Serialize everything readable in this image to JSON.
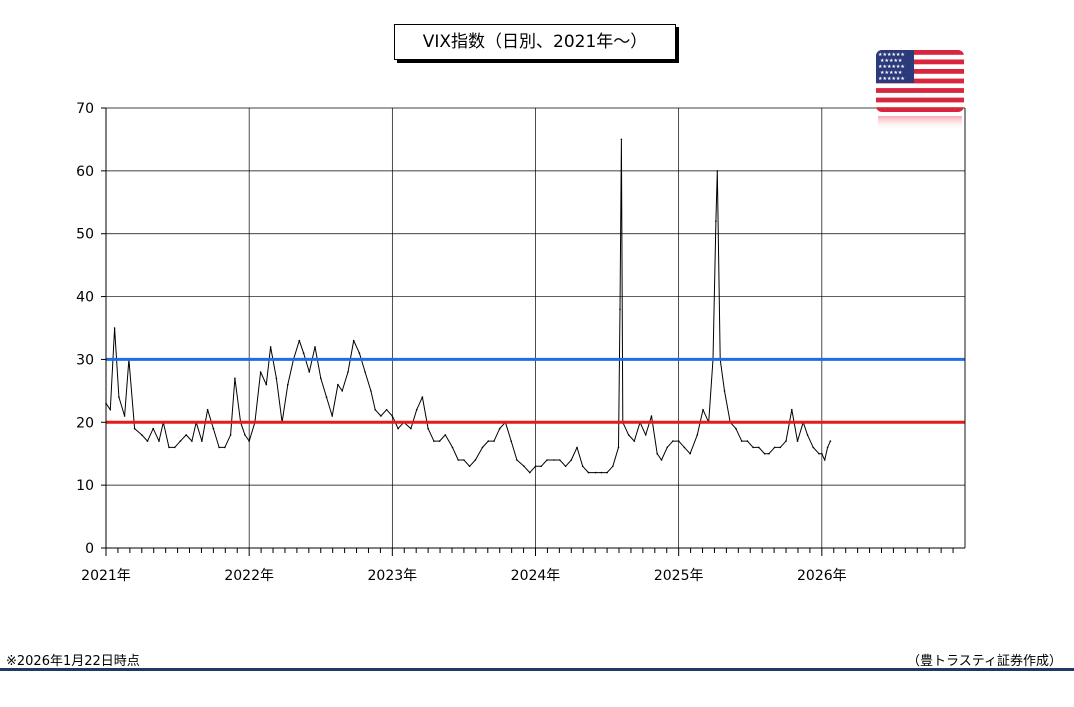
{
  "chart_data": {
    "type": "line",
    "title": "VIX指数（日別、2021年～）",
    "ylim": [
      0,
      70
    ],
    "yticks": [
      0,
      10,
      20,
      30,
      40,
      50,
      60,
      70
    ],
    "xlim": [
      2021,
      2027
    ],
    "xticks": [
      {
        "x": 2021,
        "label": "2021年"
      },
      {
        "x": 2022,
        "label": "2022年"
      },
      {
        "x": 2023,
        "label": "2023年"
      },
      {
        "x": 2024,
        "label": "2024年"
      },
      {
        "x": 2025,
        "label": "2025年"
      },
      {
        "x": 2026,
        "label": "2026年"
      }
    ],
    "grid": true,
    "reference_lines": [
      {
        "y": 30,
        "color": "#1e6fe6"
      },
      {
        "y": 20,
        "color": "#e41b17"
      }
    ],
    "series": [
      {
        "color": "#000000",
        "points": [
          [
            2021.0,
            23
          ],
          [
            2021.03,
            22
          ],
          [
            2021.06,
            35
          ],
          [
            2021.09,
            24
          ],
          [
            2021.13,
            21
          ],
          [
            2021.16,
            30
          ],
          [
            2021.2,
            19
          ],
          [
            2021.25,
            18
          ],
          [
            2021.29,
            17
          ],
          [
            2021.33,
            19
          ],
          [
            2021.37,
            17
          ],
          [
            2021.4,
            20
          ],
          [
            2021.44,
            16
          ],
          [
            2021.48,
            16
          ],
          [
            2021.52,
            17
          ],
          [
            2021.56,
            18
          ],
          [
            2021.6,
            17
          ],
          [
            2021.63,
            20
          ],
          [
            2021.67,
            17
          ],
          [
            2021.71,
            22
          ],
          [
            2021.75,
            19
          ],
          [
            2021.79,
            16
          ],
          [
            2021.83,
            16
          ],
          [
            2021.87,
            18
          ],
          [
            2021.9,
            27
          ],
          [
            2021.94,
            20
          ],
          [
            2021.97,
            18
          ],
          [
            2022.0,
            17
          ],
          [
            2022.04,
            20
          ],
          [
            2022.08,
            28
          ],
          [
            2022.12,
            26
          ],
          [
            2022.15,
            32
          ],
          [
            2022.19,
            27
          ],
          [
            2022.23,
            20
          ],
          [
            2022.27,
            26
          ],
          [
            2022.31,
            30
          ],
          [
            2022.35,
            33
          ],
          [
            2022.38,
            31
          ],
          [
            2022.42,
            28
          ],
          [
            2022.46,
            32
          ],
          [
            2022.5,
            27
          ],
          [
            2022.54,
            24
          ],
          [
            2022.58,
            21
          ],
          [
            2022.62,
            26
          ],
          [
            2022.65,
            25
          ],
          [
            2022.69,
            28
          ],
          [
            2022.73,
            33
          ],
          [
            2022.77,
            31
          ],
          [
            2022.81,
            28
          ],
          [
            2022.85,
            25
          ],
          [
            2022.88,
            22
          ],
          [
            2022.92,
            21
          ],
          [
            2022.96,
            22
          ],
          [
            2023.0,
            21
          ],
          [
            2023.04,
            19
          ],
          [
            2023.08,
            20
          ],
          [
            2023.13,
            19
          ],
          [
            2023.17,
            22
          ],
          [
            2023.21,
            24
          ],
          [
            2023.25,
            19
          ],
          [
            2023.29,
            17
          ],
          [
            2023.33,
            17
          ],
          [
            2023.37,
            18
          ],
          [
            2023.42,
            16
          ],
          [
            2023.46,
            14
          ],
          [
            2023.5,
            14
          ],
          [
            2023.54,
            13
          ],
          [
            2023.58,
            14
          ],
          [
            2023.63,
            16
          ],
          [
            2023.67,
            17
          ],
          [
            2023.71,
            17
          ],
          [
            2023.75,
            19
          ],
          [
            2023.79,
            20
          ],
          [
            2023.83,
            17
          ],
          [
            2023.87,
            14
          ],
          [
            2023.92,
            13
          ],
          [
            2023.96,
            12
          ],
          [
            2024.0,
            13
          ],
          [
            2024.04,
            13
          ],
          [
            2024.08,
            14
          ],
          [
            2024.13,
            14
          ],
          [
            2024.17,
            14
          ],
          [
            2024.21,
            13
          ],
          [
            2024.25,
            14
          ],
          [
            2024.29,
            16
          ],
          [
            2024.33,
            13
          ],
          [
            2024.37,
            12
          ],
          [
            2024.42,
            12
          ],
          [
            2024.46,
            12
          ],
          [
            2024.5,
            12
          ],
          [
            2024.54,
            13
          ],
          [
            2024.58,
            16
          ],
          [
            2024.59,
            38
          ],
          [
            2024.6,
            65
          ],
          [
            2024.61,
            20
          ],
          [
            2024.65,
            18
          ],
          [
            2024.69,
            17
          ],
          [
            2024.73,
            20
          ],
          [
            2024.77,
            18
          ],
          [
            2024.81,
            21
          ],
          [
            2024.85,
            15
          ],
          [
            2024.88,
            14
          ],
          [
            2024.92,
            16
          ],
          [
            2024.96,
            17
          ],
          [
            2025.0,
            17
          ],
          [
            2025.04,
            16
          ],
          [
            2025.08,
            15
          ],
          [
            2025.13,
            18
          ],
          [
            2025.17,
            22
          ],
          [
            2025.21,
            20
          ],
          [
            2025.24,
            30
          ],
          [
            2025.26,
            52
          ],
          [
            2025.27,
            60
          ],
          [
            2025.29,
            30
          ],
          [
            2025.32,
            25
          ],
          [
            2025.36,
            20
          ],
          [
            2025.4,
            19
          ],
          [
            2025.44,
            17
          ],
          [
            2025.48,
            17
          ],
          [
            2025.52,
            16
          ],
          [
            2025.56,
            16
          ],
          [
            2025.6,
            15
          ],
          [
            2025.63,
            15
          ],
          [
            2025.67,
            16
          ],
          [
            2025.71,
            16
          ],
          [
            2025.75,
            17
          ],
          [
            2025.79,
            22
          ],
          [
            2025.83,
            17
          ],
          [
            2025.87,
            20
          ],
          [
            2025.9,
            18
          ],
          [
            2025.94,
            16
          ],
          [
            2025.98,
            15
          ],
          [
            2026.0,
            15
          ],
          [
            2026.02,
            14
          ],
          [
            2026.04,
            16
          ],
          [
            2026.06,
            17
          ]
        ]
      }
    ]
  },
  "footnote": "※2026年1月22日時点",
  "credit": "（豊トラスティ証券作成）"
}
